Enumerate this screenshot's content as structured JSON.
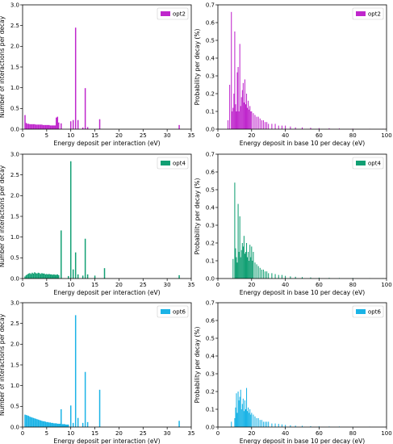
{
  "figure": {
    "panel_count": 6
  },
  "chart_data": [
    {
      "id": "opt2-left",
      "type": "bar",
      "color": "#bf26cc",
      "series_name": "opt2",
      "xlabel": "Energy deposit per interaction (eV)",
      "ylabel": "Number of interactions per decay",
      "xlim": [
        0,
        35
      ],
      "ylim": [
        0,
        3.0
      ],
      "xticks": [
        0,
        5,
        10,
        15,
        20,
        25,
        30,
        35
      ],
      "yticks": [
        0.0,
        0.5,
        1.0,
        1.5,
        2.0,
        2.5,
        3.0
      ],
      "legend_position": "top-right",
      "bar_width": 0.25,
      "x": [
        0.5,
        0.75,
        1.0,
        1.25,
        1.5,
        1.75,
        2.0,
        2.25,
        2.5,
        2.75,
        3.0,
        3.25,
        3.5,
        3.75,
        4.0,
        4.25,
        4.5,
        4.75,
        5.0,
        5.25,
        5.5,
        5.75,
        6.0,
        6.25,
        6.5,
        6.75,
        7.0,
        7.25,
        7.5,
        8.0,
        10.0,
        10.5,
        11.0,
        11.5,
        12.5,
        13.0,
        13.5,
        16.0,
        32.5
      ],
      "y": [
        0.34,
        0.15,
        0.13,
        0.13,
        0.12,
        0.12,
        0.12,
        0.12,
        0.12,
        0.11,
        0.11,
        0.11,
        0.11,
        0.11,
        0.11,
        0.1,
        0.1,
        0.1,
        0.1,
        0.1,
        0.1,
        0.09,
        0.09,
        0.09,
        0.09,
        0.09,
        0.28,
        0.3,
        0.16,
        0.14,
        0.19,
        0.22,
        2.45,
        0.22,
        0.04,
        0.99,
        0.05,
        0.24,
        0.1
      ]
    },
    {
      "id": "opt2-right",
      "type": "bar",
      "color": "#bf26cc",
      "series_name": "opt2",
      "xlabel": "Energy deposit in base 10 per decay (eV)",
      "ylabel": "Probability per decay (%)",
      "xlim": [
        0,
        100
      ],
      "ylim": [
        0,
        0.7
      ],
      "xticks": [
        0,
        20,
        40,
        60,
        80,
        100
      ],
      "yticks": [
        0.0,
        0.1,
        0.2,
        0.3,
        0.4,
        0.5,
        0.6,
        0.7
      ],
      "legend_position": "top-right",
      "bar_width": 0.5,
      "x": [
        6.0,
        7.0,
        8.0,
        8.5,
        9.0,
        9.5,
        10.0,
        10.5,
        11.0,
        11.5,
        12.0,
        12.5,
        13.0,
        13.5,
        14.0,
        14.5,
        15.0,
        15.5,
        16.0,
        16.5,
        17.0,
        17.5,
        18.0,
        18.5,
        19.0,
        19.5,
        20.0,
        21.0,
        22.0,
        23.0,
        24.0,
        25.0,
        26.0,
        27.0,
        28.0,
        29.0,
        30.0,
        32.0,
        34.0,
        36.0,
        38.0,
        40.0,
        43.0,
        46.0,
        50.0,
        55.0,
        60.0,
        66.0,
        72.0,
        80.0,
        90.0,
        98.0
      ],
      "y": [
        0.05,
        0.25,
        0.66,
        0.1,
        0.12,
        0.2,
        0.55,
        0.14,
        0.1,
        0.32,
        0.35,
        0.1,
        0.48,
        0.13,
        0.18,
        0.22,
        0.26,
        0.15,
        0.28,
        0.14,
        0.2,
        0.12,
        0.16,
        0.11,
        0.13,
        0.1,
        0.1,
        0.09,
        0.08,
        0.07,
        0.07,
        0.06,
        0.05,
        0.05,
        0.04,
        0.04,
        0.03,
        0.03,
        0.03,
        0.02,
        0.02,
        0.02,
        0.015,
        0.01,
        0.01,
        0.008,
        0.006,
        0.005,
        0.004,
        0.003,
        0.002,
        0.002
      ]
    },
    {
      "id": "opt4-left",
      "type": "bar",
      "color": "#119f73",
      "series_name": "opt4",
      "xlabel": "Energy deposit per interaction (eV)",
      "ylabel": "Number of interactions per decay",
      "xlim": [
        0,
        35
      ],
      "ylim": [
        0,
        3.0
      ],
      "xticks": [
        0,
        5,
        10,
        15,
        20,
        25,
        30,
        35
      ],
      "yticks": [
        0.0,
        0.5,
        1.0,
        1.5,
        2.0,
        2.5,
        3.0
      ],
      "legend_position": "top-right",
      "bar_width": 0.25,
      "x": [
        0.5,
        0.75,
        1.0,
        1.25,
        1.5,
        1.75,
        2.0,
        2.25,
        2.5,
        2.75,
        3.0,
        3.25,
        3.5,
        3.75,
        4.0,
        4.25,
        4.5,
        4.75,
        5.0,
        5.25,
        5.5,
        5.75,
        6.0,
        6.25,
        6.5,
        6.75,
        7.0,
        7.25,
        7.5,
        8.0,
        9.5,
        10.0,
        10.5,
        11.0,
        11.5,
        12.5,
        13.0,
        13.5,
        15.0,
        17.0,
        32.5
      ],
      "y": [
        0.05,
        0.08,
        0.1,
        0.12,
        0.13,
        0.11,
        0.14,
        0.12,
        0.15,
        0.13,
        0.12,
        0.14,
        0.13,
        0.11,
        0.13,
        0.12,
        0.12,
        0.1,
        0.11,
        0.1,
        0.11,
        0.1,
        0.1,
        0.09,
        0.1,
        0.09,
        0.09,
        0.1,
        0.08,
        1.16,
        0.06,
        2.83,
        0.22,
        0.63,
        0.1,
        0.07,
        0.96,
        0.1,
        0.07,
        0.25,
        0.08
      ]
    },
    {
      "id": "opt4-right",
      "type": "bar",
      "color": "#119f73",
      "series_name": "opt4",
      "xlabel": "Energy deposit in base 10 per decay (eV)",
      "ylabel": "Probability per decay (%)",
      "xlim": [
        0,
        100
      ],
      "ylim": [
        0,
        0.7
      ],
      "xticks": [
        0,
        20,
        40,
        60,
        80,
        100
      ],
      "yticks": [
        0.0,
        0.1,
        0.2,
        0.3,
        0.4,
        0.5,
        0.6,
        0.7
      ],
      "legend_position": "top-right",
      "bar_width": 0.5,
      "x": [
        9.0,
        10.0,
        10.5,
        11.0,
        11.5,
        12.0,
        12.5,
        13.0,
        13.5,
        14.0,
        14.5,
        15.0,
        15.5,
        16.0,
        16.5,
        17.0,
        17.5,
        18.0,
        18.5,
        19.0,
        19.5,
        20.0,
        20.5,
        21.0,
        22.0,
        23.0,
        24.0,
        25.0,
        26.0,
        27.0,
        28.0,
        29.0,
        30.0,
        32.0,
        34.0,
        36.0,
        38.0,
        40.0,
        43.0,
        46.0,
        50.0,
        55.0,
        60.0,
        66.0,
        72.0,
        80.0,
        90.0,
        98.0
      ],
      "y": [
        0.11,
        0.54,
        0.17,
        0.12,
        0.09,
        0.42,
        0.15,
        0.35,
        0.12,
        0.16,
        0.2,
        0.18,
        0.24,
        0.14,
        0.15,
        0.2,
        0.12,
        0.15,
        0.1,
        0.19,
        0.12,
        0.18,
        0.1,
        0.15,
        0.09,
        0.08,
        0.07,
        0.06,
        0.05,
        0.05,
        0.04,
        0.04,
        0.03,
        0.03,
        0.025,
        0.02,
        0.02,
        0.015,
        0.012,
        0.01,
        0.008,
        0.006,
        0.005,
        0.004,
        0.003,
        0.003,
        0.002,
        0.002
      ]
    },
    {
      "id": "opt6-left",
      "type": "bar",
      "color": "#1ab3e6",
      "series_name": "opt6",
      "xlabel": "Energy deposit per interaction (eV)",
      "ylabel": "Number of interactions per decay",
      "xlim": [
        0,
        35
      ],
      "ylim": [
        0,
        3.0
      ],
      "xticks": [
        0,
        5,
        10,
        15,
        20,
        25,
        30,
        35
      ],
      "yticks": [
        0.0,
        0.5,
        1.0,
        1.5,
        2.0,
        2.5,
        3.0
      ],
      "legend_position": "top-right",
      "bar_width": 0.25,
      "x": [
        0.5,
        0.75,
        1.0,
        1.25,
        1.5,
        1.75,
        2.0,
        2.25,
        2.5,
        2.75,
        3.0,
        3.25,
        3.5,
        3.75,
        4.0,
        4.25,
        4.5,
        4.75,
        5.0,
        5.25,
        5.5,
        5.75,
        6.0,
        6.25,
        6.5,
        6.75,
        7.0,
        7.25,
        7.5,
        7.75,
        8.0,
        8.25,
        8.5,
        8.75,
        9.0,
        9.25,
        9.5,
        10.0,
        10.5,
        11.0,
        11.5,
        12.5,
        13.0,
        13.5,
        16.0,
        32.5
      ],
      "y": [
        0.3,
        0.29,
        0.28,
        0.27,
        0.25,
        0.24,
        0.23,
        0.22,
        0.21,
        0.2,
        0.19,
        0.18,
        0.17,
        0.16,
        0.15,
        0.14,
        0.14,
        0.13,
        0.12,
        0.12,
        0.11,
        0.11,
        0.1,
        0.1,
        0.09,
        0.09,
        0.09,
        0.08,
        0.08,
        0.08,
        0.43,
        0.07,
        0.07,
        0.07,
        0.06,
        0.06,
        0.06,
        0.52,
        0.1,
        2.7,
        0.22,
        0.1,
        1.33,
        0.12,
        0.9,
        0.15
      ]
    },
    {
      "id": "opt6-right",
      "type": "bar",
      "color": "#1ab3e6",
      "series_name": "opt6",
      "xlabel": "Energy deposit in base 10 per decay (eV)",
      "ylabel": "Probability per decay (%)",
      "xlim": [
        0,
        100
      ],
      "ylim": [
        0,
        0.7
      ],
      "xticks": [
        0,
        20,
        40,
        60,
        80,
        100
      ],
      "yticks": [
        0.0,
        0.1,
        0.2,
        0.3,
        0.4,
        0.5,
        0.6,
        0.7
      ],
      "legend_position": "top-right",
      "bar_width": 0.5,
      "x": [
        8.0,
        10.0,
        10.5,
        11.0,
        11.5,
        12.0,
        12.5,
        13.0,
        13.5,
        14.0,
        14.5,
        15.0,
        15.5,
        16.0,
        16.5,
        17.0,
        17.5,
        18.0,
        18.5,
        19.0,
        19.5,
        20.0,
        21.0,
        22.0,
        23.0,
        24.0,
        25.0,
        26.0,
        27.0,
        28.0,
        29.0,
        30.0,
        32.0,
        34.0,
        36.0,
        38.0,
        40.0,
        43.0,
        46.0,
        50.0,
        55.0,
        60.0,
        66.0,
        72.0,
        80.0,
        90.0,
        98.0
      ],
      "y": [
        0.03,
        0.05,
        0.11,
        0.19,
        0.08,
        0.2,
        0.15,
        0.17,
        0.21,
        0.1,
        0.13,
        0.16,
        0.09,
        0.15,
        0.1,
        0.22,
        0.09,
        0.11,
        0.08,
        0.1,
        0.07,
        0.08,
        0.07,
        0.06,
        0.05,
        0.05,
        0.04,
        0.04,
        0.03,
        0.03,
        0.03,
        0.03,
        0.02,
        0.02,
        0.018,
        0.015,
        0.012,
        0.01,
        0.008,
        0.007,
        0.005,
        0.004,
        0.003,
        0.003,
        0.002,
        0.002,
        0.001
      ]
    }
  ]
}
